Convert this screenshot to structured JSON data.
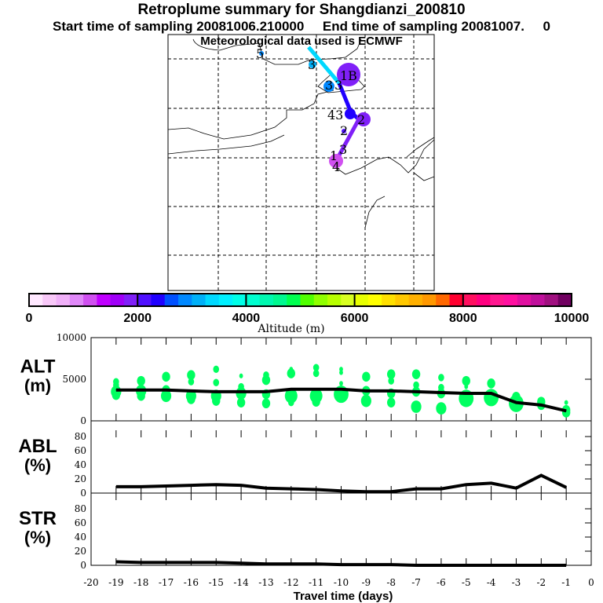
{
  "title": "Retroplume summary for Shangdianzi_200810",
  "subtitle": "Start time of sampling 20081006.210000     End time of sampling 20081007.     0",
  "met_line": "Meteorological data used is ECMWF",
  "colorbar": {
    "label": "Altitude (m)",
    "ticks": [
      "0",
      "2000",
      "4000",
      "6000",
      "8000",
      "10000"
    ],
    "colors": [
      "#ffe8ff",
      "#f8c8f8",
      "#f0b0f8",
      "#e088f8",
      "#d050f0",
      "#c000ff",
      "#a000f8",
      "#8020f8",
      "#5010ff",
      "#2000ff",
      "#0050ff",
      "#0088ff",
      "#00b0f8",
      "#00d8ff",
      "#00f0ff",
      "#00ffe8",
      "#00ffd0",
      "#00f8b0",
      "#00f890",
      "#00ff50",
      "#50ff00",
      "#90ff00",
      "#b8ff00",
      "#d8ff20",
      "#e8ff00",
      "#ffff00",
      "#ffe000",
      "#ffc800",
      "#ffb000",
      "#ff9800",
      "#ff6800",
      "#ff0030",
      "#ff1060",
      "#ff0080",
      "#ff1890",
      "#ff10a0",
      "#e010a0",
      "#c0109c",
      "#a01080",
      "#700060"
    ]
  },
  "map": {
    "labels": [
      "5",
      "3",
      "3",
      "3",
      "1B",
      "43",
      "2",
      "2",
      "1",
      "3",
      "4"
    ]
  },
  "chart_data": [
    {
      "type": "line",
      "panel": "ALT",
      "ylabel": "ALT\n(m)",
      "ylabel_top": "ALT",
      "ylabel_bottom": "(m)",
      "ylim": [
        0,
        10000
      ],
      "yticks": [
        "0",
        "5000",
        "10000"
      ],
      "x": [
        -19,
        -18,
        -17,
        -16,
        -15,
        -14,
        -13,
        -12,
        -11,
        -10,
        -9,
        -8,
        -7,
        -6,
        -5,
        -4,
        -3,
        -2,
        -1
      ],
      "values": [
        3700,
        3700,
        3700,
        3600,
        3500,
        3500,
        3500,
        3800,
        3800,
        3800,
        3600,
        3600,
        3500,
        3400,
        3300,
        3300,
        2200,
        1900,
        1200
      ],
      "scatter_color": "#00ff60",
      "scatter": [
        [
          [
            4700,
            2
          ],
          [
            4300,
            2
          ],
          [
            3500,
            4
          ],
          [
            3100,
            3
          ]
        ],
        [
          [
            4800,
            3
          ],
          [
            3600,
            4
          ],
          [
            3000,
            3
          ]
        ],
        [
          [
            5300,
            3
          ],
          [
            3700,
            3
          ],
          [
            3000,
            4
          ]
        ],
        [
          [
            5500,
            3
          ],
          [
            4700,
            2
          ],
          [
            3000,
            4
          ],
          [
            2600,
            3
          ]
        ],
        [
          [
            6200,
            2
          ],
          [
            4600,
            2
          ],
          [
            3000,
            4
          ],
          [
            2400,
            3
          ]
        ],
        [
          [
            5400,
            1
          ],
          [
            4100,
            2
          ],
          [
            3300,
            4
          ],
          [
            2200,
            3
          ]
        ],
        [
          [
            5500,
            2
          ],
          [
            4900,
            3
          ],
          [
            3200,
            3
          ],
          [
            2100,
            3
          ]
        ],
        [
          [
            6200,
            1
          ],
          [
            5700,
            3
          ],
          [
            3000,
            5
          ],
          [
            2200,
            2
          ]
        ],
        [
          [
            6400,
            2
          ],
          [
            5700,
            2
          ],
          [
            3000,
            5
          ],
          [
            2300,
            3
          ]
        ],
        [
          [
            6200,
            1
          ],
          [
            5800,
            1
          ],
          [
            4500,
            1
          ],
          [
            3200,
            6
          ]
        ],
        [
          [
            5300,
            3
          ],
          [
            3600,
            3
          ],
          [
            2400,
            4
          ]
        ],
        [
          [
            5600,
            3
          ],
          [
            4800,
            2
          ],
          [
            3300,
            3
          ],
          [
            2200,
            3
          ]
        ],
        [
          [
            5600,
            3
          ],
          [
            4300,
            2
          ],
          [
            3500,
            3
          ],
          [
            1700,
            4
          ]
        ],
        [
          [
            5200,
            2
          ],
          [
            4000,
            2
          ],
          [
            3300,
            3
          ],
          [
            1500,
            4
          ]
        ],
        [
          [
            4800,
            3
          ],
          [
            4100,
            1
          ],
          [
            2700,
            6
          ]
        ],
        [
          [
            4500,
            3
          ],
          [
            2800,
            6
          ]
        ],
        [
          [
            2900,
            3
          ],
          [
            2100,
            6
          ]
        ],
        [
          [
            2300,
            3
          ],
          [
            1900,
            3
          ]
        ],
        [
          [
            2200,
            1
          ],
          [
            1300,
            3
          ],
          [
            1000,
            3
          ]
        ]
      ]
    },
    {
      "type": "line",
      "panel": "ABL",
      "ylabel_top": "ABL",
      "ylabel_bottom": "(%)",
      "ylim": [
        0,
        100
      ],
      "yticks": [
        "0",
        "20",
        "40",
        "60",
        "80"
      ],
      "x": [
        -19,
        -18,
        -17,
        -16,
        -15,
        -14,
        -13,
        -12,
        -11,
        -10,
        -9,
        -8,
        -7,
        -6,
        -5,
        -4,
        -3,
        -2,
        -1
      ],
      "values": [
        9,
        9,
        10,
        11,
        12,
        11,
        7,
        6,
        5,
        3,
        2,
        2,
        6,
        6,
        12,
        14,
        7,
        25,
        8
      ]
    },
    {
      "type": "line",
      "panel": "STR",
      "ylabel_top": "STR",
      "ylabel_bottom": "(%)",
      "ylim": [
        0,
        100
      ],
      "yticks": [
        "0",
        "20",
        "40",
        "60",
        "80"
      ],
      "x": [
        -19,
        -18,
        -17,
        -16,
        -15,
        -14,
        -13,
        -12,
        -11,
        -10,
        -9,
        -8,
        -7,
        -6,
        -5,
        -4,
        -3,
        -2,
        -1
      ],
      "values": [
        5,
        4,
        4,
        4,
        4,
        3,
        2,
        2,
        2,
        1,
        1,
        1,
        0,
        0,
        0,
        0,
        0,
        0,
        0
      ]
    }
  ],
  "xaxis": {
    "label": "Travel time (days)",
    "ticks": [
      "-20",
      "-19",
      "-18",
      "-17",
      "-16",
      "-15",
      "-14",
      "-13",
      "-12",
      "-11",
      "-10",
      "-9",
      "-8",
      "-7",
      "-6",
      "-5",
      "-4",
      "-3",
      "-2",
      "-1",
      "0"
    ],
    "xlim": [
      -20,
      0
    ]
  }
}
